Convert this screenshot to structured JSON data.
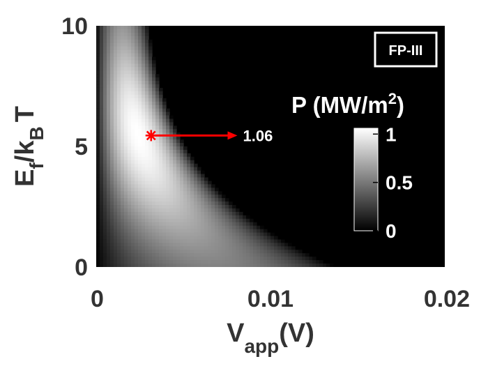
{
  "chart_data": {
    "type": "heatmap",
    "x_range": [
      0,
      0.02
    ],
    "y_range": [
      0,
      10
    ],
    "x_ticks": [
      "0",
      "0.01",
      "0.02"
    ],
    "y_ticks": [
      "0",
      "5",
      "10"
    ],
    "xlabel": {
      "main": "V",
      "sub": "app",
      "tail": "(V)"
    },
    "ylabel": {
      "e": "E",
      "f": "f",
      "mid": "/k",
      "b": "B",
      "t": "T"
    },
    "panel_label": "FP-III",
    "colorbar": {
      "title_main": "P (MW/m",
      "title_sup": "2",
      "title_tail": ")",
      "range": [
        0,
        1.06
      ],
      "ticks": [
        "0",
        "0.5",
        "1"
      ],
      "tick_values": [
        0,
        0.5,
        1
      ]
    },
    "max_point": {
      "x": 0.00315,
      "y": 5.45,
      "label": "1.06",
      "value": 1.06,
      "arrow_to_x": 0.0081
    },
    "colors": {
      "marker": "#ff0000",
      "background": "#000000",
      "text": "#333333"
    }
  }
}
